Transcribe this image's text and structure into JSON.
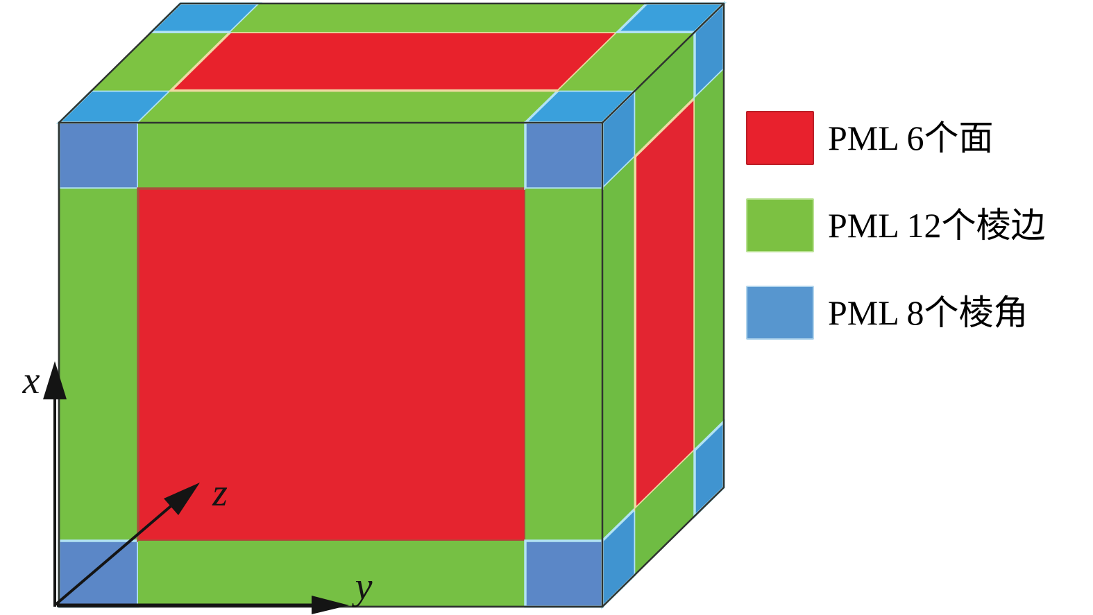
{
  "figure": {
    "background": "#ffffff",
    "axes": {
      "x_label": "x",
      "y_label": "y",
      "z_label": "z",
      "color": "#141414"
    },
    "legend": {
      "items": [
        {
          "id": "pml-6-faces",
          "label": "PML 6个面",
          "color": "#e8212d",
          "border": "#bb2028"
        },
        {
          "id": "pml-12-edges",
          "label": "PML 12个棱边",
          "color": "#7cc142",
          "border": "#b9e193"
        },
        {
          "id": "pml-8-corners",
          "label": "PML 8个棱角",
          "color": "#5796cf",
          "border": "#b0d4ec"
        }
      ]
    },
    "cube": {
      "outline": "#2f3430",
      "colors": {
        "front": {
          "red": "#e5242f",
          "green": "#76c044",
          "blue": "#5b87c7"
        },
        "top": {
          "red": "#e8222c",
          "green": "#7dc342",
          "blue": "#3aa0dc"
        },
        "right": {
          "red": "#e32531",
          "green": "#6fbc43",
          "blue": "#4094d0"
        }
      },
      "strokes": {
        "red": "#eedaa2",
        "front_red": "#a8503c",
        "blue": "#b2e3f4"
      }
    }
  }
}
